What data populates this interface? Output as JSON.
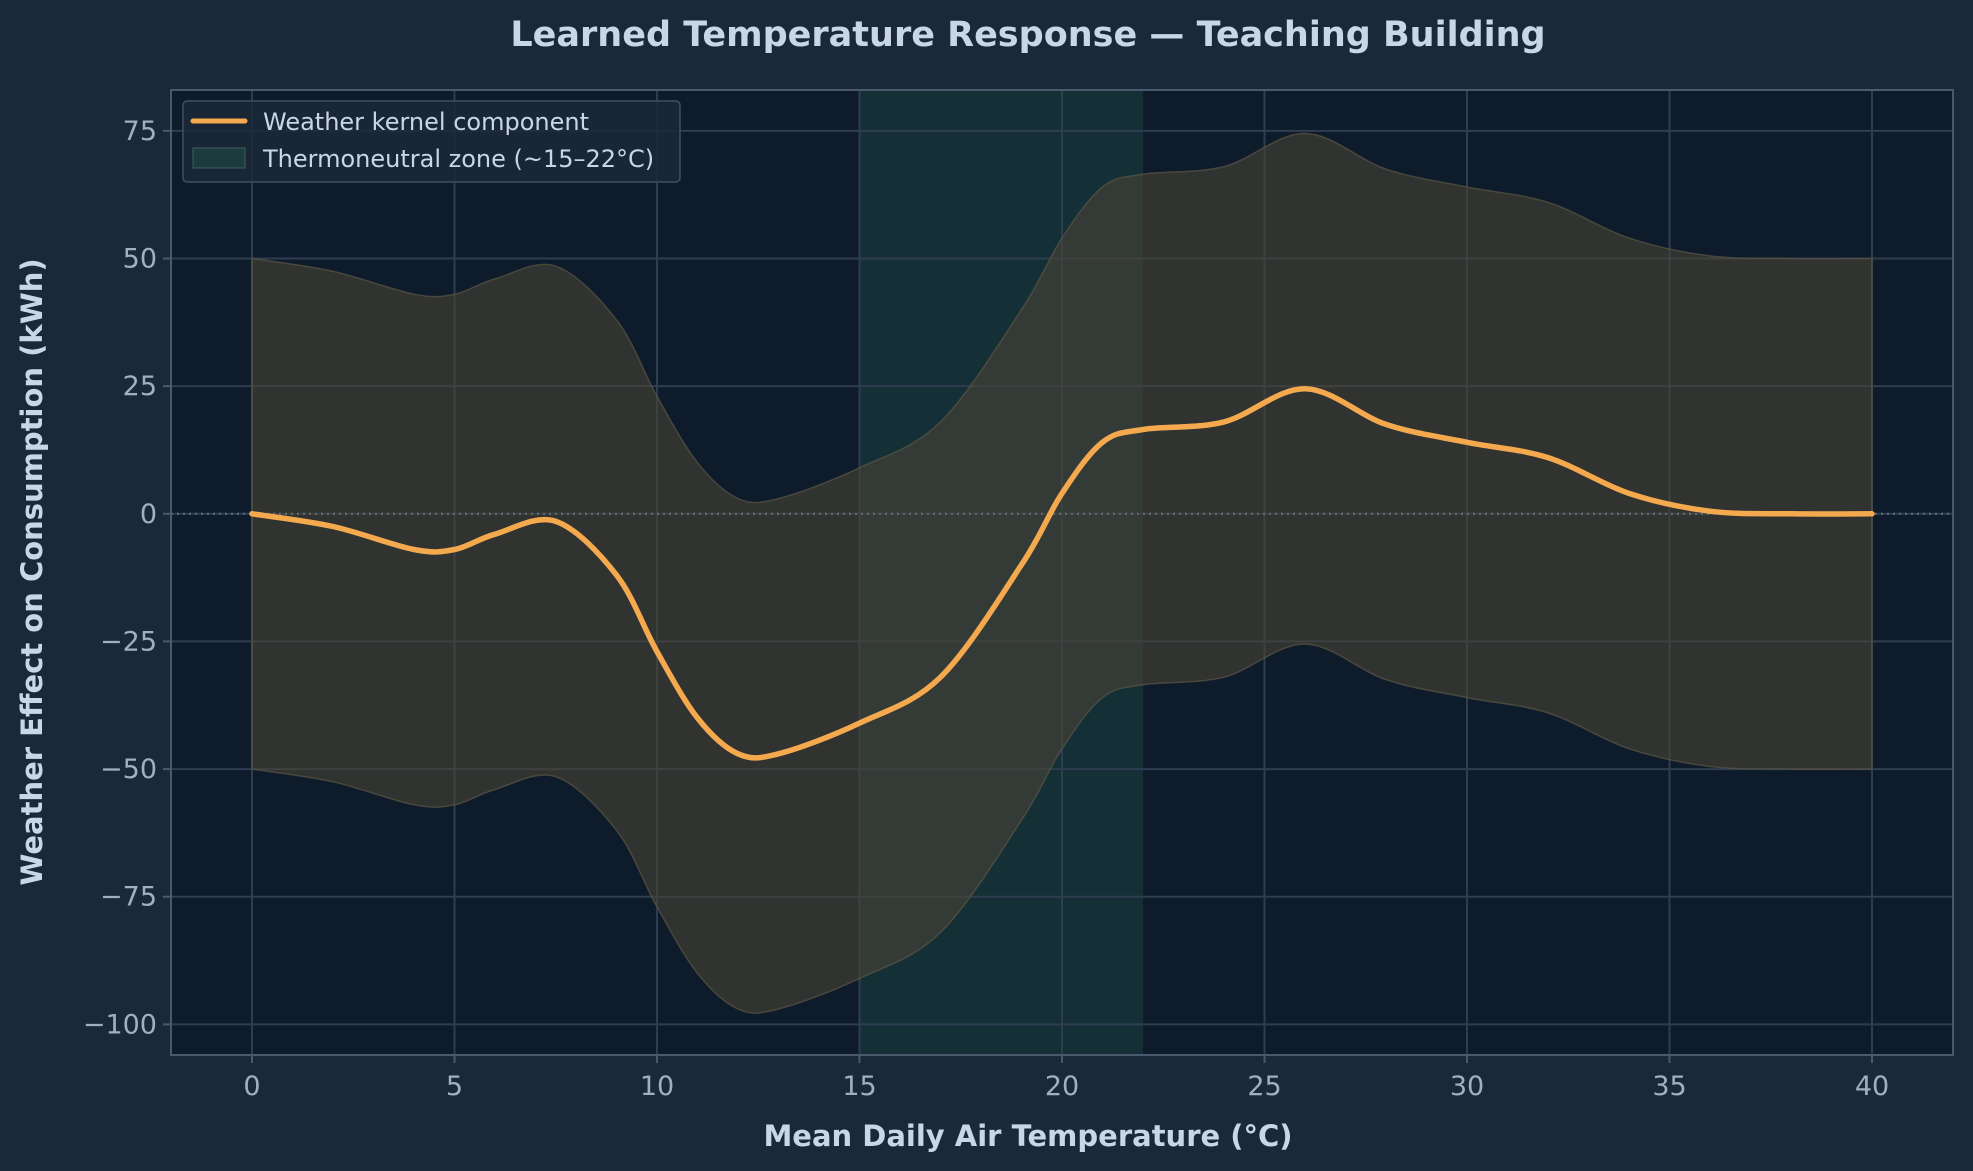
{
  "chart_data": {
    "type": "line",
    "title": "Learned Temperature Response — Teaching Building",
    "xlabel": "Mean Daily Air Temperature (°C)",
    "ylabel": "Weather Effect on Consumption (kWh)",
    "xlim": [
      -2,
      42
    ],
    "ylim": [
      -106,
      83
    ],
    "xticks": [
      0,
      5,
      10,
      15,
      20,
      25,
      30,
      35,
      40
    ],
    "yticks": [
      -100,
      -75,
      -50,
      -25,
      0,
      25,
      50,
      75
    ],
    "x_tick_labels": [
      "0",
      "5",
      "10",
      "15",
      "20",
      "25",
      "30",
      "35",
      "40"
    ],
    "y_tick_labels": [
      "−100",
      "−75",
      "−50",
      "−25",
      "0",
      "25",
      "50",
      "75"
    ],
    "grid": true,
    "legend_position": "top-left",
    "zero_reference_line": 0,
    "series": [
      {
        "name": "Weather kernel component",
        "color": "#f5a94e",
        "x": [
          0,
          2,
          4,
          5,
          6,
          7.5,
          9,
          10,
          11,
          12,
          13,
          15,
          17,
          19,
          20,
          21,
          22,
          24,
          26,
          28,
          30,
          32,
          34,
          36,
          38,
          40
        ],
        "y": [
          0,
          -2.5,
          -7,
          -7,
          -4,
          -1.5,
          -12,
          -27,
          -40,
          -47,
          -47,
          -41,
          -32,
          -10,
          4,
          14,
          16.5,
          18,
          24.5,
          17.5,
          14,
          11,
          4,
          0.5,
          0,
          0
        ],
        "band_upper": [
          50,
          47.5,
          43,
          43,
          46,
          48.5,
          38,
          23,
          10,
          3,
          3,
          9,
          18,
          40,
          54,
          64,
          66.5,
          68,
          74.5,
          67.5,
          64,
          61,
          54,
          50.5,
          50,
          50
        ],
        "band_lower": [
          -50,
          -52.5,
          -57,
          -57,
          -54,
          -51.5,
          -62,
          -77,
          -90,
          -97,
          -97,
          -91,
          -82,
          -60,
          -46,
          -36,
          -33.5,
          -32,
          -25.5,
          -32.5,
          -36,
          -39,
          -46,
          -49.5,
          -50,
          -50
        ]
      }
    ],
    "shaded_region": {
      "name": "Thermoneutral zone (~15–22°C)",
      "x_start": 15,
      "x_end": 22,
      "color": "#1e4a46"
    },
    "colors": {
      "background": "#1b2838",
      "plot_background": "#0e1b2b",
      "line": "#f5a94e",
      "band": "#4a4536",
      "grid": "#2e3d4f",
      "text": "#c9d6e6",
      "tick_text": "#9fb0c3"
    }
  }
}
